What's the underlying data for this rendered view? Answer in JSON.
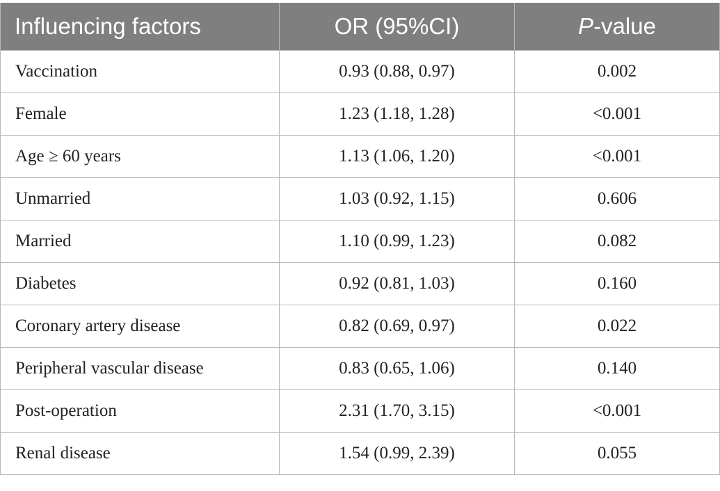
{
  "table": {
    "headers": {
      "factor": "Influencing factors",
      "or": "OR (95%CI)",
      "p_italic": "P",
      "p_rest": "-value"
    },
    "rows": [
      {
        "factor": "Vaccination",
        "or": "0.93 (0.88, 0.97)",
        "p": "0.002"
      },
      {
        "factor": "Female",
        "or": "1.23 (1.18, 1.28)",
        "p": "<0.001"
      },
      {
        "factor": "Age ≥ 60 years",
        "or": "1.13 (1.06, 1.20)",
        "p": "<0.001"
      },
      {
        "factor": "Unmarried",
        "or": "1.03 (0.92, 1.15)",
        "p": "0.606"
      },
      {
        "factor": "Married",
        "or": "1.10 (0.99, 1.23)",
        "p": "0.082"
      },
      {
        "factor": "Diabetes",
        "or": "0.92 (0.81, 1.03)",
        "p": "0.160"
      },
      {
        "factor": "Coronary artery disease",
        "or": "0.82 (0.69, 0.97)",
        "p": "0.022"
      },
      {
        "factor": "Peripheral vascular disease",
        "or": "0.83 (0.65, 1.06)",
        "p": "0.140"
      },
      {
        "factor": "Post-operation",
        "or": "2.31 (1.70, 3.15)",
        "p": "<0.001"
      },
      {
        "factor": "Renal disease",
        "or": "1.54 (0.99, 2.39)",
        "p": "0.055"
      }
    ]
  }
}
